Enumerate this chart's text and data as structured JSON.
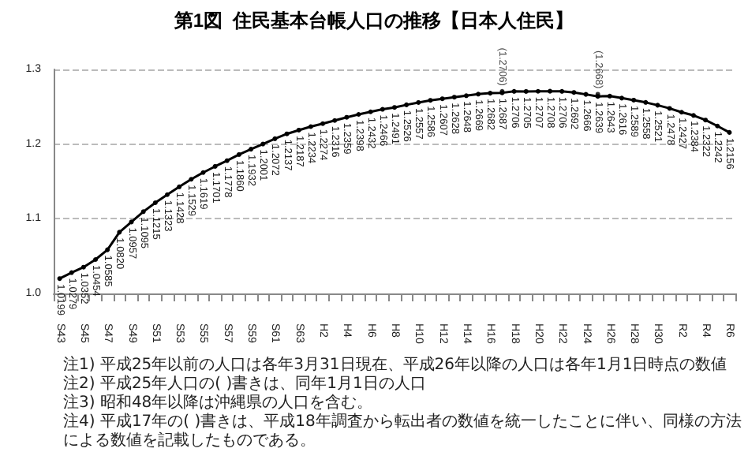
{
  "chart_data": {
    "type": "line",
    "title": "第1図  住民基本台帳人口の推移【日本人住民】",
    "categories": [
      "S43",
      null,
      "S45",
      null,
      "S47",
      null,
      "S49",
      null,
      "S51",
      null,
      "S53",
      null,
      "S55",
      null,
      "S57",
      null,
      "S59",
      null,
      "S61",
      null,
      "S63",
      null,
      "H2",
      null,
      "H4",
      null,
      "H6",
      null,
      "H8",
      null,
      "H10",
      null,
      "H12",
      null,
      "H14",
      null,
      "H16",
      null,
      "H18",
      null,
      "H20",
      null,
      "H22",
      null,
      "H24",
      null,
      "H26",
      null,
      "H28",
      null,
      "H30",
      null,
      "R2",
      null,
      "R4",
      null,
      "R6"
    ],
    "series": [
      {
        "color": "#000000",
        "values": [
          1.0199,
          1.0279,
          1.0352,
          1.0454,
          1.0585,
          1.082,
          1.0957,
          1.1095,
          1.1215,
          1.1323,
          1.1428,
          1.1529,
          1.1619,
          1.1701,
          1.1778,
          1.186,
          1.1932,
          1.2001,
          1.2072,
          1.2137,
          1.2187,
          1.2234,
          1.2274,
          1.2316,
          1.2359,
          1.2398,
          1.2432,
          1.2466,
          1.2491,
          1.2526,
          1.2557,
          1.2586,
          1.2607,
          1.2628,
          1.2648,
          1.2669,
          1.2682,
          1.2687,
          1.2706,
          1.2705,
          1.2707,
          1.2708,
          1.2706,
          1.2692,
          1.2666,
          1.2639,
          1.2643,
          1.2616,
          1.2589,
          1.2558,
          1.2521,
          1.2478,
          1.2427,
          1.2384,
          1.2322,
          1.2242,
          1.2156
        ],
        "value_labels": [
          "1.0199",
          "1.0279",
          "1.0352",
          "1.0454",
          "1.0585",
          "1.0820",
          "1.0957",
          "1.1095",
          "1.1215",
          "1.1323",
          "1.1428",
          "1.1529",
          "1.1619",
          "1.1701",
          "1.1778",
          "1.1860",
          "1.1932",
          "1.2001",
          "1.2072",
          "1.2137",
          "1.2187",
          "1.2234",
          "1.2274",
          "1.2316",
          "1.2359",
          "1.2398",
          "1.2432",
          "1.2466",
          "1.2491",
          "1.2526",
          "1.2557",
          "1.2586",
          "1.2607",
          "1.2628",
          "1.2648",
          "1.2669",
          "1.2682",
          "1.2687",
          "1.2706",
          "1.2705",
          "1.2707",
          "1.2708",
          "1.2706",
          "1.2692",
          "1.2666",
          "1.2639",
          "1.2643",
          "1.2616",
          "1.2589",
          "1.2558",
          "1.2521",
          "1.2478",
          "1.2427",
          "1.2384",
          "1.2322",
          "1.2242",
          "1.2156"
        ]
      },
      {
        "type": "scatter",
        "color": "#000000",
        "values": [
          null,
          null,
          null,
          null,
          null,
          null,
          null,
          null,
          null,
          null,
          null,
          null,
          null,
          null,
          null,
          null,
          null,
          null,
          null,
          null,
          null,
          null,
          null,
          null,
          null,
          null,
          null,
          null,
          null,
          null,
          null,
          null,
          null,
          null,
          null,
          null,
          null,
          1.2706,
          null,
          null,
          null,
          null,
          null,
          null,
          null,
          1.2668,
          null,
          null,
          null,
          null,
          null,
          null,
          null,
          null,
          null,
          null,
          null
        ],
        "value_labels": [
          null,
          null,
          null,
          null,
          null,
          null,
          null,
          null,
          null,
          null,
          null,
          null,
          null,
          null,
          null,
          null,
          null,
          null,
          null,
          null,
          null,
          null,
          null,
          null,
          null,
          null,
          null,
          null,
          null,
          null,
          null,
          null,
          null,
          null,
          null,
          null,
          null,
          "(1.2706)",
          null,
          null,
          null,
          null,
          null,
          null,
          null,
          "(1.2668)",
          null,
          null,
          null,
          null,
          null,
          null,
          null,
          null,
          null,
          null,
          null
        ]
      }
    ],
    "ylim": [
      1.0,
      1.3
    ],
    "yticks": [
      {
        "value": 1.0,
        "label": "1.0"
      },
      1.1,
      1.2,
      1.3
    ],
    "grid": "y",
    "marker": "circle",
    "line_style": "solid",
    "annotations": [
      "注1) 平成25年以前の人口は各年3月31日現在、平成26年以降の人口は各年1月1日時点の数値",
      "注2) 平成25年人口の( )書きは、同年1月1日の人口",
      "注3) 昭和48年以降は沖縄県の人口を含む。",
      "注4) 平成17年の( )書きは、平成18年調査から転出者の数値を統一したことに伴い、同様の方法による数値を記載したものである。"
    ]
  }
}
